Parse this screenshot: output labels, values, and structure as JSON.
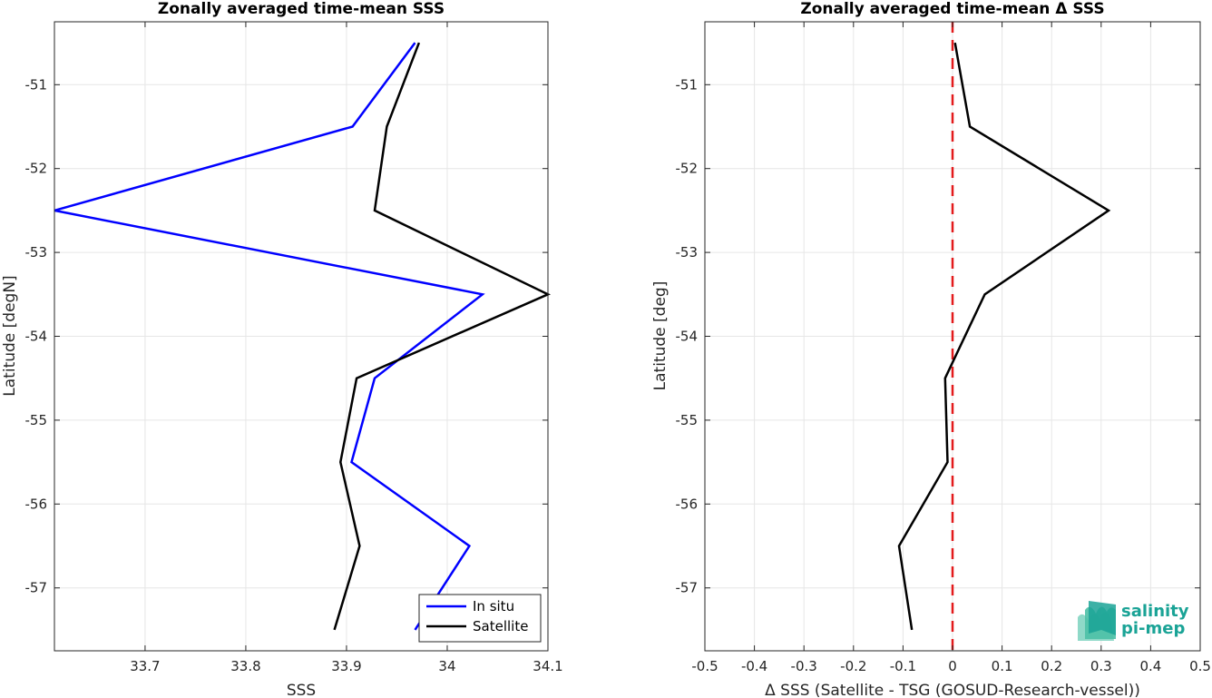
{
  "chart_data": [
    {
      "type": "line",
      "title": "Zonally averaged time-mean SSS",
      "xlabel": "SSS",
      "ylabel": "Latitude [degN]",
      "xlim": [
        33.61,
        34.1
      ],
      "ylim": [
        -57.75,
        -50.25
      ],
      "xticks": [
        33.7,
        33.8,
        33.9,
        34.0,
        34.1
      ],
      "xtick_labels": [
        "33.7",
        "33.8",
        "33.9",
        "34",
        "34.1"
      ],
      "yticks": [
        -51,
        -52,
        -53,
        -54,
        -55,
        -56,
        -57
      ],
      "ytick_labels": [
        "-51",
        "-52",
        "-53",
        "-54",
        "-55",
        "-56",
        "-57"
      ],
      "grid": true,
      "legend_position": "bottom-right",
      "y": [
        -50.5,
        -51.5,
        -52.5,
        -53.5,
        -54.5,
        -55.5,
        -56.5,
        -57.5
      ],
      "series": [
        {
          "name": "In situ",
          "color": "#0000ff",
          "values": [
            33.968,
            33.906,
            33.61,
            34.035,
            33.928,
            33.905,
            34.022,
            33.968
          ]
        },
        {
          "name": "Satellite",
          "color": "#000000",
          "values": [
            33.972,
            33.94,
            33.928,
            34.1,
            33.91,
            33.894,
            33.913,
            33.888
          ]
        }
      ]
    },
    {
      "type": "line",
      "title": "Zonally averaged time-mean Δ SSS",
      "xlabel": "Δ SSS (Satellite - TSG (GOSUD-Research-vessel))",
      "ylabel": "Latitude [deg]",
      "xlim": [
        -0.5,
        0.5
      ],
      "ylim": [
        -57.75,
        -50.25
      ],
      "xticks": [
        -0.5,
        -0.4,
        -0.3,
        -0.2,
        -0.1,
        0,
        0.1,
        0.2,
        0.3,
        0.4,
        0.5
      ],
      "xtick_labels": [
        "-0.5",
        "-0.4",
        "-0.3",
        "-0.2",
        "-0.1",
        "0",
        "0.1",
        "0.2",
        "0.3",
        "0.4",
        "0.5"
      ],
      "yticks": [
        -51,
        -52,
        -53,
        -54,
        -55,
        -56,
        -57
      ],
      "ytick_labels": [
        "-51",
        "-52",
        "-53",
        "-54",
        "-55",
        "-56",
        "-57"
      ],
      "grid": true,
      "reference_line": {
        "x": 0,
        "color": "#e31a1c",
        "style": "dashed"
      },
      "y": [
        -50.5,
        -51.5,
        -52.5,
        -53.5,
        -54.5,
        -55.5,
        -56.5,
        -57.5
      ],
      "series": [
        {
          "color": "#000000",
          "values": [
            0.005,
            0.035,
            0.315,
            0.065,
            -0.015,
            -0.01,
            -0.108,
            -0.082
          ]
        }
      ]
    }
  ],
  "logo": {
    "line1": "salinity",
    "line2": "pi-mep",
    "color": "#1aa396"
  }
}
